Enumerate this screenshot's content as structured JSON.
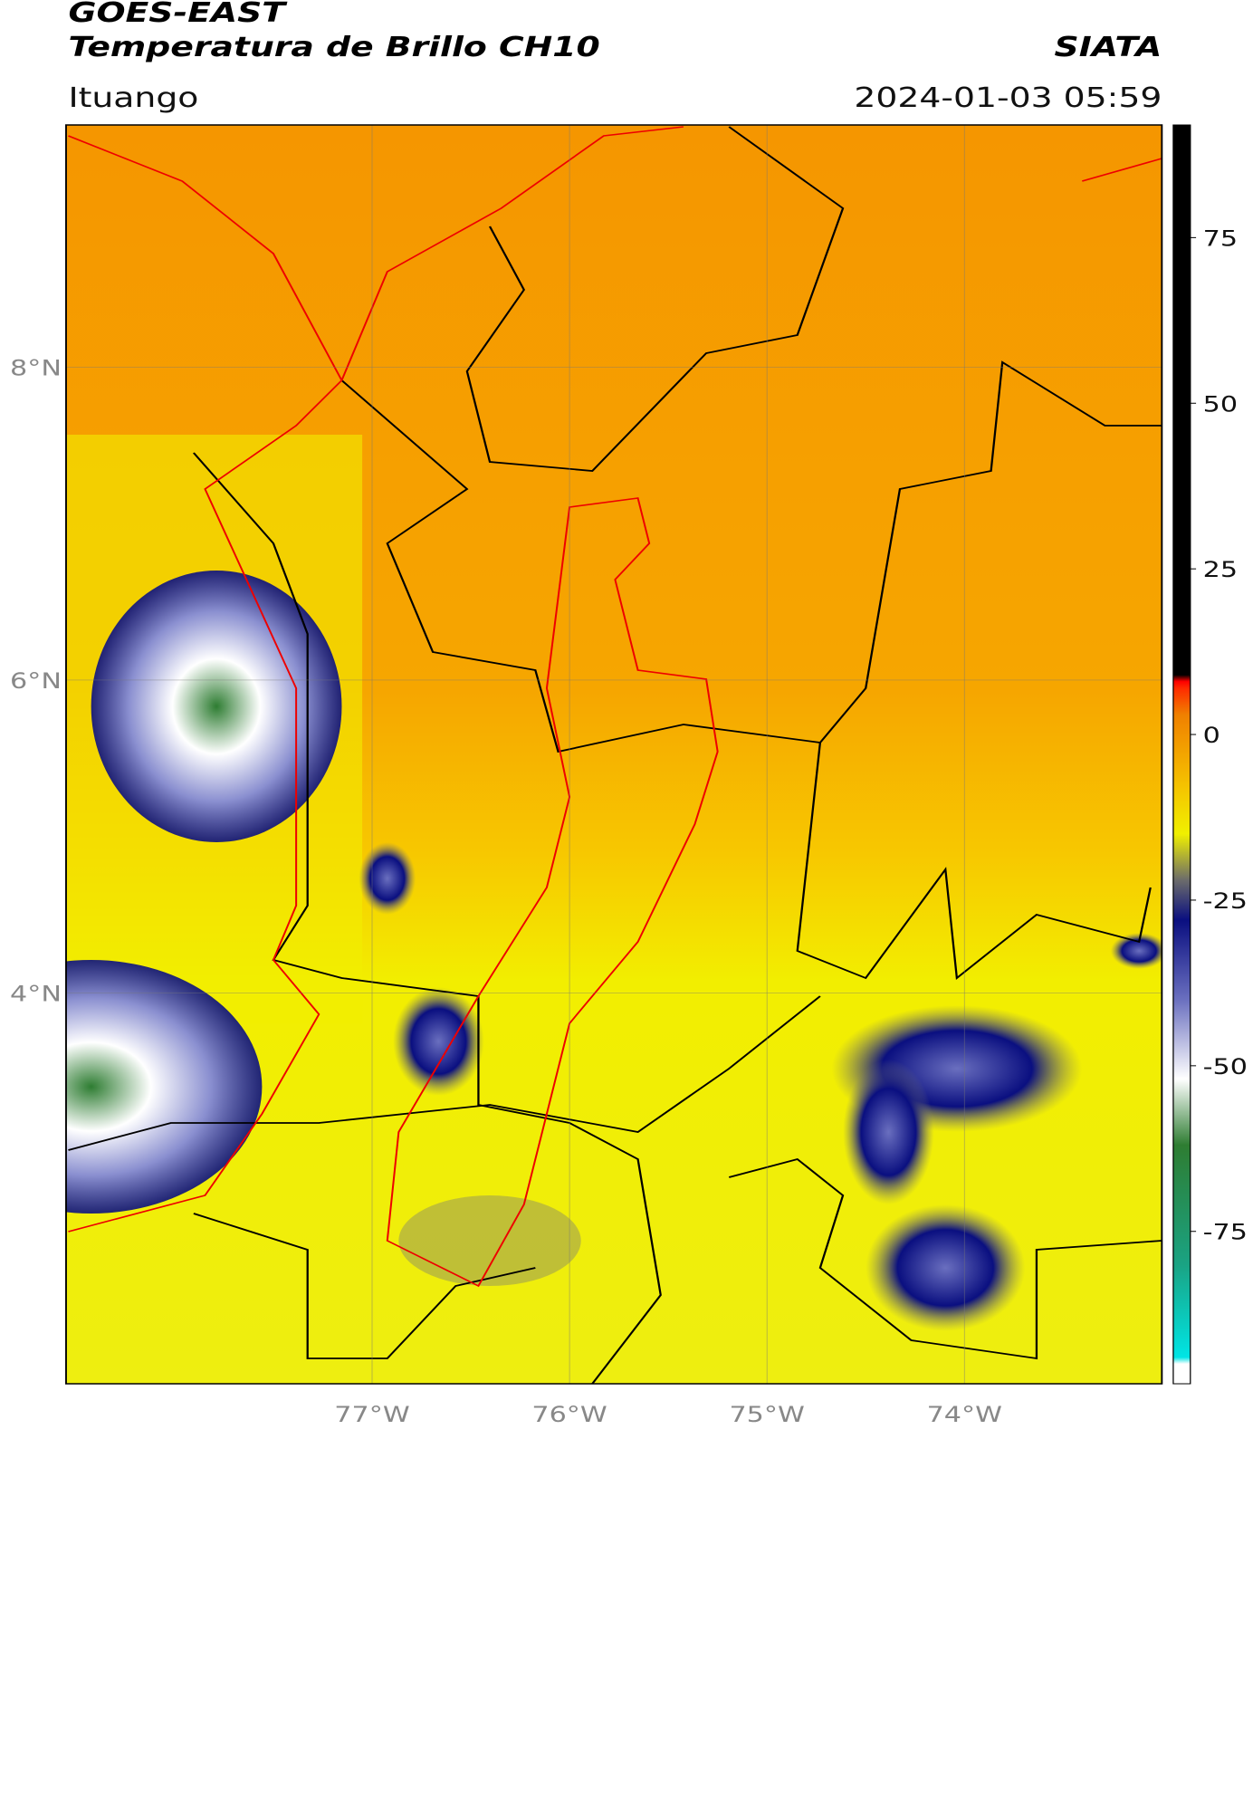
{
  "header": {
    "satellite": "GOES-EAST",
    "product": "Temperatura de Brillo CH10",
    "source": "SIATA",
    "location": "Ituango",
    "datetime": "2024-01-03 05:59"
  },
  "map": {
    "lon_range": [
      -78.55,
      -73.0
    ],
    "lat_range": [
      1.5,
      9.55
    ],
    "lat_ticks": [
      {
        "value": 8,
        "label": "8°N"
      },
      {
        "value": 6,
        "label": "6°N"
      },
      {
        "value": 4,
        "label": "4°N"
      }
    ],
    "lon_ticks": [
      {
        "value": -77,
        "label": "77°W"
      },
      {
        "value": -76,
        "label": "76°W"
      },
      {
        "value": -75,
        "label": "75°W"
      },
      {
        "value": -74,
        "label": "74°W"
      }
    ]
  },
  "colorbar": {
    "range": [
      -98,
      92
    ],
    "ticks": [
      75,
      50,
      25,
      0,
      -25,
      -50,
      -75
    ],
    "stops": [
      {
        "value": -98,
        "color": "#ffffff"
      },
      {
        "value": -95,
        "color": "#ffffff"
      },
      {
        "value": -94,
        "color": "#00e5e5"
      },
      {
        "value": -80,
        "color": "#1aa383"
      },
      {
        "value": -62,
        "color": "#2e7d32"
      },
      {
        "value": -52,
        "color": "#ffffff"
      },
      {
        "value": -40,
        "color": "#6a6fbf"
      },
      {
        "value": -28,
        "color": "#0a0f80"
      },
      {
        "value": -22,
        "color": "#6b6b6b"
      },
      {
        "value": -15,
        "color": "#f0f000"
      },
      {
        "value": -8,
        "color": "#f5c400"
      },
      {
        "value": 3,
        "color": "#f08000"
      },
      {
        "value": 7,
        "color": "#ff2a00"
      },
      {
        "value": 8,
        "color": "#ff0000"
      },
      {
        "value": 9,
        "color": "#000000"
      },
      {
        "value": 92,
        "color": "#000000"
      }
    ]
  }
}
